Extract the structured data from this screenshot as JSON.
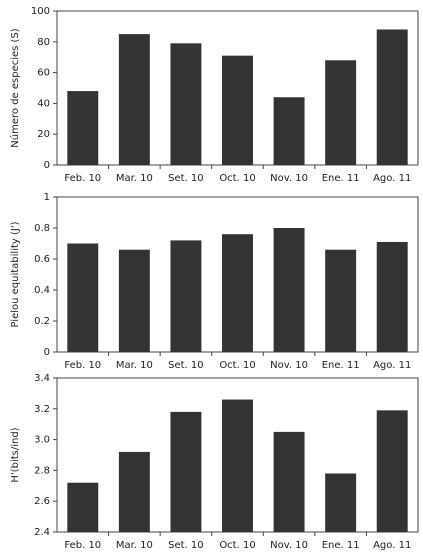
{
  "chart_data": [
    {
      "type": "bar",
      "y_label": "Número de especies (S)",
      "categories": [
        "Feb. 10",
        "Mar. 10",
        "Set. 10",
        "Oct. 10",
        "Nov. 10",
        "Ene. 11",
        "Ago. 11"
      ],
      "values": [
        48,
        85,
        79,
        71,
        44,
        68,
        88
      ],
      "color": "#333333",
      "ylim": [
        0,
        100
      ],
      "yticks": [
        0,
        20,
        40,
        60,
        80,
        100
      ],
      "grid": false
    },
    {
      "type": "bar",
      "y_label": "Pielou equitability (J')",
      "categories": [
        "Feb. 10",
        "Mar. 10",
        "Set. 10",
        "Oct. 10",
        "Nov. 10",
        "Ene. 11",
        "Ago. 11"
      ],
      "values": [
        0.7,
        0.66,
        0.72,
        0.76,
        0.8,
        0.66,
        0.71
      ],
      "color": "#333333",
      "ylim": [
        0,
        1
      ],
      "yticks": [
        0,
        0.2,
        0.4,
        0.6,
        0.8,
        1
      ],
      "grid": false
    },
    {
      "type": "bar",
      "y_label": "H'(bits/ind)",
      "categories": [
        "Feb. 10",
        "Mar. 10",
        "Set. 10",
        "Oct. 10",
        "Nov. 10",
        "Ene. 11",
        "Ago. 11"
      ],
      "values": [
        2.72,
        2.92,
        3.18,
        3.26,
        3.05,
        2.78,
        3.19
      ],
      "color": "#333333",
      "ylim": [
        2.4,
        3.4
      ],
      "yticks": [
        2.4,
        2.6,
        2.8,
        {
          "value": 3,
          "label": "3.0"
        },
        3.2,
        3.4
      ],
      "grid": false
    }
  ]
}
